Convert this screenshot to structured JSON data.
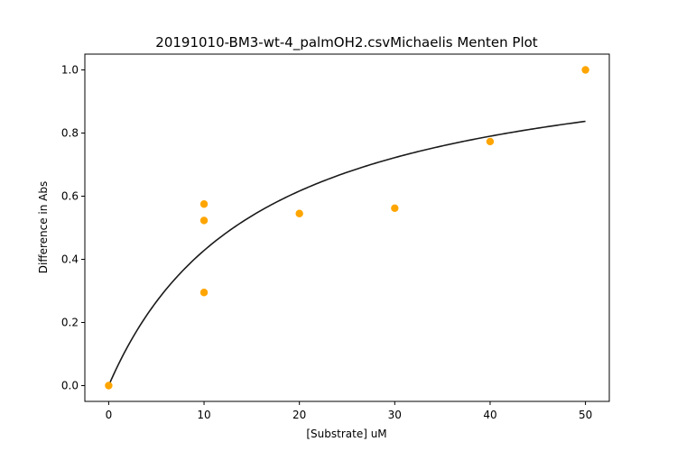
{
  "chart_data": {
    "type": "scatter",
    "title": "20191010-BM3-wt-4_palmOH2.csvMichaelis Menten Plot",
    "xlabel": "[Substrate] uM",
    "ylabel": "Difference in Abs",
    "xlim": [
      -2.5,
      52.5
    ],
    "ylim": [
      -0.05,
      1.05
    ],
    "xticks": [
      0,
      10,
      20,
      30,
      40,
      50
    ],
    "yticks": [
      0.0,
      0.2,
      0.4,
      0.6,
      0.8,
      1.0
    ],
    "xtick_labels": [
      "0",
      "10",
      "20",
      "30",
      "40",
      "50"
    ],
    "ytick_labels": [
      "0.0",
      "0.2",
      "0.4",
      "0.6",
      "0.8",
      "1.0"
    ],
    "grid": false,
    "points": {
      "x": [
        0,
        10,
        10,
        10,
        20,
        30,
        40,
        50
      ],
      "y": [
        0.0,
        0.575,
        0.523,
        0.295,
        0.545,
        0.562,
        0.773,
        1.0
      ],
      "color": "#ffa500"
    },
    "fit_curve": {
      "model": "michaelis-menten",
      "vmax": 1.1,
      "km": 15.7,
      "x_range": [
        0,
        50
      ],
      "color": "#1a1a1a"
    }
  }
}
